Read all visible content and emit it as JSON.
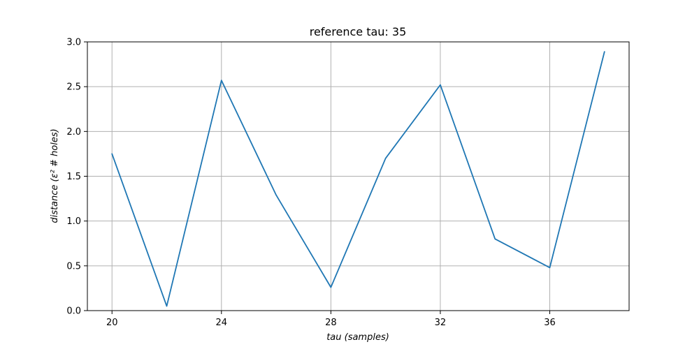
{
  "chart_data": {
    "type": "line",
    "title": "reference tau: 35",
    "xlabel": "tau   (samples)",
    "ylabel": "distance   (ε² # holes)",
    "x": [
      20,
      22,
      24,
      26,
      28,
      30,
      32,
      34,
      36,
      38
    ],
    "series": [
      {
        "values": [
          1.75,
          0.05,
          2.57,
          1.29,
          0.26,
          1.7,
          2.52,
          0.8,
          0.48,
          2.89
        ]
      }
    ],
    "xticks": [
      20,
      24,
      28,
      32,
      36
    ],
    "yticks": [
      0.0,
      0.5,
      1.0,
      1.5,
      2.0,
      2.5,
      3.0
    ],
    "xtick_labels": [
      "20",
      "24",
      "28",
      "32",
      "36"
    ],
    "ytick_labels": [
      "0.0",
      "0.5",
      "1.0",
      "1.5",
      "2.0",
      "2.5",
      "3.0"
    ],
    "xlim": [
      19.1,
      38.9
    ],
    "ylim": [
      0.0,
      3.0
    ],
    "grid": true,
    "line_color": "#1f77b4"
  }
}
